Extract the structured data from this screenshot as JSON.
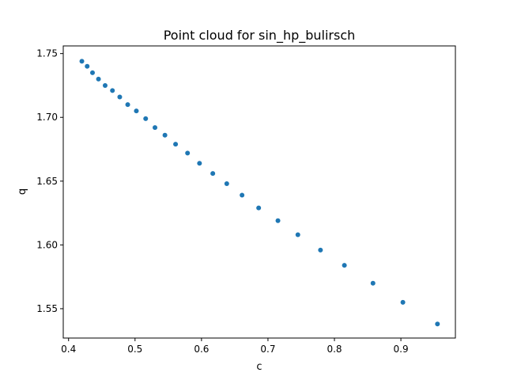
{
  "chart_data": {
    "type": "scatter",
    "title": "Point cloud for sin_hp_bulirsch",
    "xlabel": "c",
    "ylabel": "q",
    "xlim": [
      0.392,
      0.982
    ],
    "ylim": [
      1.527,
      1.756
    ],
    "grid": false,
    "x_ticks": [
      0.4,
      0.5,
      0.6,
      0.7,
      0.8,
      0.9
    ],
    "x_tick_labels": [
      "0.4",
      "0.5",
      "0.6",
      "0.7",
      "0.8",
      "0.9"
    ],
    "y_ticks": [
      1.55,
      1.6,
      1.65,
      1.7,
      1.75
    ],
    "y_tick_labels": [
      "1.55",
      "1.60",
      "1.65",
      "1.70",
      "1.75"
    ],
    "marker_color": "#1f77b4",
    "series": [
      {
        "x": [
          0.42,
          0.428,
          0.436,
          0.445,
          0.455,
          0.466,
          0.477,
          0.489,
          0.502,
          0.516,
          0.53,
          0.545,
          0.561,
          0.579,
          0.597,
          0.617,
          0.638,
          0.661,
          0.686,
          0.715,
          0.745,
          0.779,
          0.815,
          0.858,
          0.903,
          0.955
        ],
        "y": [
          1.744,
          1.74,
          1.735,
          1.73,
          1.725,
          1.721,
          1.716,
          1.71,
          1.705,
          1.699,
          1.692,
          1.686,
          1.679,
          1.672,
          1.664,
          1.656,
          1.648,
          1.639,
          1.629,
          1.619,
          1.608,
          1.596,
          1.584,
          1.57,
          1.555,
          1.538
        ]
      }
    ]
  }
}
